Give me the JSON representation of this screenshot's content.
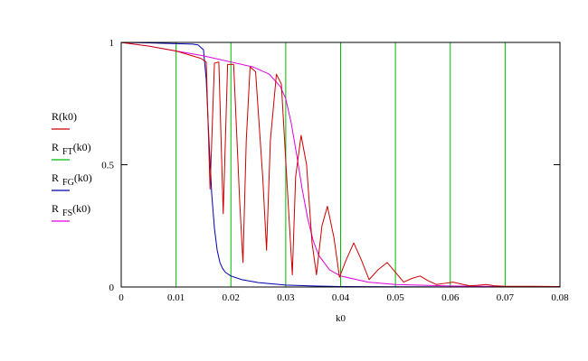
{
  "chart_data": {
    "type": "line",
    "title": "",
    "xlabel": "k0",
    "ylabel": "",
    "xlim": [
      0,
      0.08
    ],
    "ylim": [
      0,
      1
    ],
    "x_ticks": [
      "0",
      "0.01",
      "0.02",
      "0.03",
      "0.04",
      "0.05",
      "0.06",
      "0.07",
      "0.08"
    ],
    "y_ticks": [
      "0",
      "0.5",
      "1"
    ],
    "grid": "vertical",
    "legend_position": "left",
    "series": [
      {
        "name": "R(k0)",
        "legend_main": "R",
        "legend_sub": "",
        "legend_arg": "(k0)",
        "color": "#cc0000",
        "points": [
          [
            0,
            1.0
          ],
          [
            0.005,
            0.985
          ],
          [
            0.01,
            0.965
          ],
          [
            0.0145,
            0.935
          ],
          [
            0.0155,
            0.92
          ],
          [
            0.0162,
            0.4
          ],
          [
            0.017,
            0.915
          ],
          [
            0.0178,
            0.92
          ],
          [
            0.0186,
            0.3
          ],
          [
            0.0194,
            0.91
          ],
          [
            0.0205,
            0.91
          ],
          [
            0.0216,
            0.35
          ],
          [
            0.0222,
            0.1
          ],
          [
            0.0228,
            0.6
          ],
          [
            0.0235,
            0.9
          ],
          [
            0.0245,
            0.88
          ],
          [
            0.0258,
            0.45
          ],
          [
            0.0265,
            0.15
          ],
          [
            0.0272,
            0.6
          ],
          [
            0.0283,
            0.87
          ],
          [
            0.0292,
            0.83
          ],
          [
            0.0303,
            0.4
          ],
          [
            0.0312,
            0.05
          ],
          [
            0.0318,
            0.45
          ],
          [
            0.0328,
            0.62
          ],
          [
            0.0338,
            0.5
          ],
          [
            0.0348,
            0.18
          ],
          [
            0.0356,
            0.05
          ],
          [
            0.0366,
            0.25
          ],
          [
            0.0376,
            0.33
          ],
          [
            0.0388,
            0.2
          ],
          [
            0.0398,
            0.04
          ],
          [
            0.041,
            0.11
          ],
          [
            0.0424,
            0.18
          ],
          [
            0.0438,
            0.11
          ],
          [
            0.0452,
            0.03
          ],
          [
            0.0468,
            0.07
          ],
          [
            0.0485,
            0.1
          ],
          [
            0.05,
            0.06
          ],
          [
            0.0515,
            0.02
          ],
          [
            0.053,
            0.035
          ],
          [
            0.0545,
            0.045
          ],
          [
            0.056,
            0.025
          ],
          [
            0.0575,
            0.01
          ],
          [
            0.059,
            0.015
          ],
          [
            0.0605,
            0.02
          ],
          [
            0.062,
            0.012
          ],
          [
            0.0635,
            0.005
          ],
          [
            0.065,
            0.007
          ],
          [
            0.0665,
            0.01
          ],
          [
            0.068,
            0.005
          ],
          [
            0.07,
            0.003
          ],
          [
            0.075,
            0.003
          ],
          [
            0.08,
            0.002
          ]
        ]
      },
      {
        "name": "R_FT(k0)",
        "legend_main": "R",
        "legend_sub": "FT",
        "legend_arg": "(k0)",
        "color": "#00bb00",
        "points": []
      },
      {
        "name": "R_FG(k0)",
        "legend_main": "R",
        "legend_sub": "FG",
        "legend_arg": "(k0)",
        "color": "#0000aa",
        "points": [
          [
            0,
            1.0
          ],
          [
            0.005,
            0.998
          ],
          [
            0.01,
            0.995
          ],
          [
            0.013,
            0.993
          ],
          [
            0.014,
            0.99
          ],
          [
            0.015,
            0.97
          ],
          [
            0.0155,
            0.85
          ],
          [
            0.016,
            0.6
          ],
          [
            0.0165,
            0.38
          ],
          [
            0.017,
            0.24
          ],
          [
            0.0175,
            0.15
          ],
          [
            0.018,
            0.1
          ],
          [
            0.0185,
            0.075
          ],
          [
            0.019,
            0.06
          ],
          [
            0.02,
            0.045
          ],
          [
            0.022,
            0.03
          ],
          [
            0.025,
            0.018
          ],
          [
            0.03,
            0.008
          ],
          [
            0.035,
            0.004
          ],
          [
            0.04,
            0.002
          ],
          [
            0.05,
            0.001
          ],
          [
            0.06,
            0.0005
          ],
          [
            0.08,
            0.0002
          ]
        ]
      },
      {
        "name": "R_FS(k0)",
        "legend_main": "R",
        "legend_sub": "FS",
        "legend_arg": "(k0)",
        "color": "#dd00dd",
        "points": [
          [
            0,
            1.0
          ],
          [
            0.005,
            0.985
          ],
          [
            0.01,
            0.965
          ],
          [
            0.015,
            0.945
          ],
          [
            0.02,
            0.92
          ],
          [
            0.024,
            0.9
          ],
          [
            0.027,
            0.87
          ],
          [
            0.029,
            0.82
          ],
          [
            0.03,
            0.77
          ],
          [
            0.031,
            0.67
          ],
          [
            0.032,
            0.54
          ],
          [
            0.033,
            0.4
          ],
          [
            0.034,
            0.28
          ],
          [
            0.035,
            0.19
          ],
          [
            0.036,
            0.13
          ],
          [
            0.038,
            0.07
          ],
          [
            0.04,
            0.045
          ],
          [
            0.045,
            0.02
          ],
          [
            0.05,
            0.01
          ],
          [
            0.06,
            0.004
          ],
          [
            0.07,
            0.002
          ],
          [
            0.08,
            0.001
          ]
        ]
      }
    ]
  }
}
